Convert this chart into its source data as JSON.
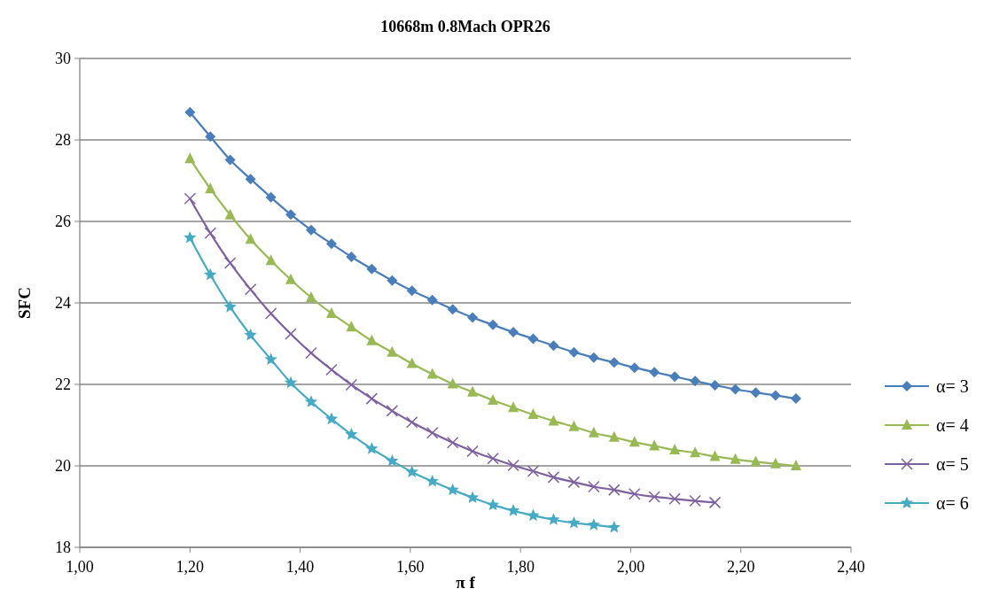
{
  "chart_data": {
    "type": "line",
    "title": "10668m 0.8Mach OPR26",
    "xlabel": "π f",
    "ylabel": "SFC",
    "x": [
      1.2,
      1.237,
      1.273,
      1.31,
      1.347,
      1.383,
      1.42,
      1.457,
      1.493,
      1.53,
      1.567,
      1.603,
      1.64,
      1.677,
      1.713,
      1.75,
      1.787,
      1.823,
      1.86,
      1.897,
      1.933,
      1.97,
      2.007,
      2.043,
      2.08,
      2.117,
      2.153,
      2.19,
      2.227,
      2.263,
      2.3
    ],
    "xlim": [
      1,
      2.4
    ],
    "xticks": [
      {
        "value": 1,
        "label": "1,00"
      },
      {
        "value": 1.2,
        "label": "1,20"
      },
      {
        "value": 1.4,
        "label": "1,40"
      },
      {
        "value": 1.6,
        "label": "1,60"
      },
      {
        "value": 1.8,
        "label": "1,80"
      },
      {
        "value": 2,
        "label": "2,00"
      },
      {
        "value": 2.2,
        "label": "2,20"
      },
      {
        "value": 2.4,
        "label": "2,40"
      }
    ],
    "ylim": [
      18,
      30
    ],
    "yticks": [
      18,
      20,
      22,
      24,
      26,
      28,
      30
    ],
    "grid": "y",
    "legend": "right",
    "series": [
      {
        "name": "α= 3",
        "color": "#4a7ebb",
        "marker": "diamond",
        "values": [
          28.68,
          28.08,
          27.51,
          27.04,
          26.59,
          26.17,
          25.79,
          25.45,
          25.13,
          24.83,
          24.55,
          24.3,
          24.07,
          23.84,
          23.64,
          23.46,
          23.28,
          23.12,
          22.95,
          22.79,
          22.66,
          22.54,
          22.41,
          22.3,
          22.19,
          22.08,
          21.98,
          21.88,
          21.8,
          21.73,
          21.65
        ]
      },
      {
        "name": "α= 4",
        "color": "#98b954",
        "marker": "triangle",
        "values": [
          27.54,
          26.8,
          26.16,
          25.56,
          25.04,
          24.57,
          24.13,
          23.74,
          23.41,
          23.07,
          22.79,
          22.51,
          22.25,
          22.01,
          21.81,
          21.61,
          21.43,
          21.26,
          21.1,
          20.96,
          20.81,
          20.7,
          20.58,
          20.49,
          20.39,
          20.32,
          20.23,
          20.16,
          20.1,
          20.05,
          20.0
        ]
      },
      {
        "name": "α= 5",
        "color": "#7d60a0",
        "marker": "cross",
        "x": [
          1.2,
          1.237,
          1.273,
          1.31,
          1.347,
          1.383,
          1.42,
          1.457,
          1.493,
          1.53,
          1.567,
          1.603,
          1.64,
          1.677,
          1.713,
          1.75,
          1.787,
          1.823,
          1.86,
          1.897,
          1.933,
          1.97,
          2.007,
          2.043,
          2.08,
          2.117,
          2.153
        ],
        "values": [
          26.56,
          25.71,
          24.98,
          24.33,
          23.74,
          23.24,
          22.77,
          22.36,
          21.99,
          21.65,
          21.35,
          21.07,
          20.81,
          20.57,
          20.36,
          20.18,
          20.01,
          19.87,
          19.72,
          19.6,
          19.49,
          19.41,
          19.31,
          19.24,
          19.19,
          19.14,
          19.1
        ]
      },
      {
        "name": "α= 6",
        "color": "#46aac5",
        "marker": "star",
        "x": [
          1.2,
          1.237,
          1.273,
          1.31,
          1.347,
          1.383,
          1.42,
          1.457,
          1.493,
          1.53,
          1.567,
          1.603,
          1.64,
          1.677,
          1.713,
          1.75,
          1.787,
          1.823,
          1.86,
          1.897,
          1.933,
          1.97
        ],
        "values": [
          25.6,
          24.69,
          23.9,
          23.21,
          22.61,
          22.04,
          21.57,
          21.15,
          20.77,
          20.42,
          20.12,
          19.85,
          19.62,
          19.41,
          19.22,
          19.04,
          18.9,
          18.78,
          18.68,
          18.6,
          18.55,
          18.49
        ]
      }
    ]
  }
}
